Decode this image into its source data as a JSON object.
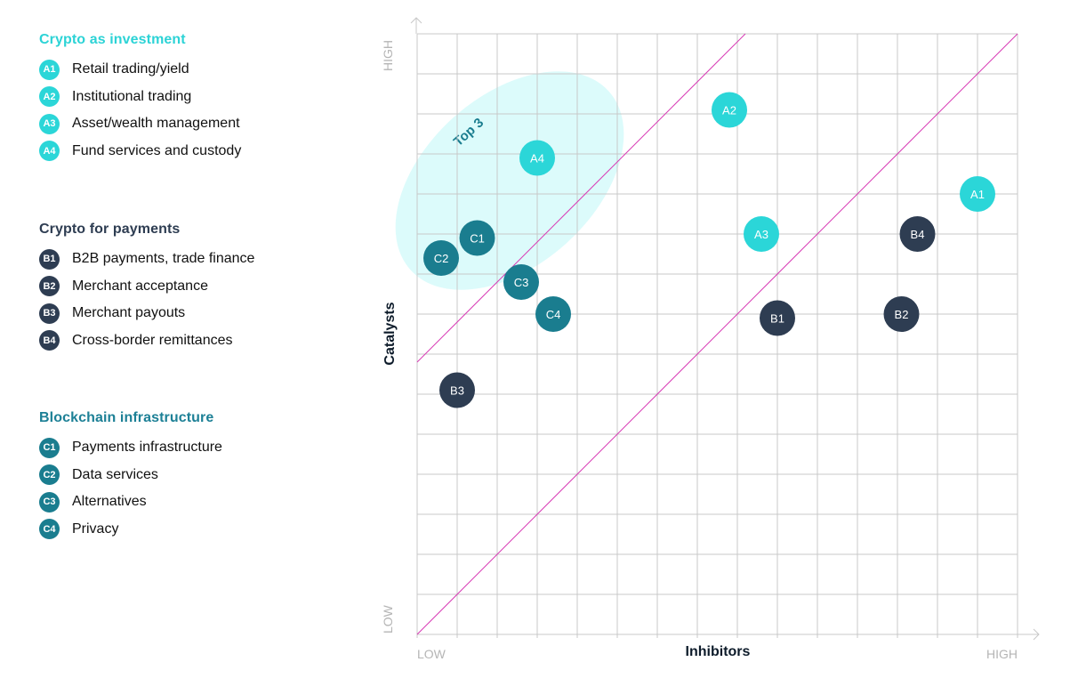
{
  "legend": {
    "groups": [
      {
        "title": "Crypto as investment",
        "color": "#2bd6d8",
        "title_color": "#2cd3d6",
        "items": [
          {
            "code": "A1",
            "label": "Retail trading/yield"
          },
          {
            "code": "A2",
            "label": "Institutional trading"
          },
          {
            "code": "A3",
            "label": "Asset/wealth management"
          },
          {
            "code": "A4",
            "label": "Fund services and custody"
          }
        ]
      },
      {
        "title": "Crypto for payments",
        "color": "#2e3d52",
        "title_color": "#2e3d52",
        "items": [
          {
            "code": "B1",
            "label": "B2B payments, trade finance"
          },
          {
            "code": "B2",
            "label": "Merchant acceptance"
          },
          {
            "code": "B3",
            "label": "Merchant payouts"
          },
          {
            "code": "B4",
            "label": "Cross-border remittances"
          }
        ]
      },
      {
        "title": "Blockchain infrastructure",
        "color": "#1a7d8f",
        "title_color": "#1d8096",
        "items": [
          {
            "code": "C1",
            "label": "Payments infrastructure"
          },
          {
            "code": "C2",
            "label": "Data services"
          },
          {
            "code": "C3",
            "label": "Alternatives"
          },
          {
            "code": "C4",
            "label": "Privacy"
          }
        ]
      }
    ]
  },
  "chart_data": {
    "type": "scatter",
    "xlabel": "Inhibitors",
    "ylabel": "Catalysts",
    "x_low_label": "LOW",
    "x_high_label": "HIGH",
    "y_low_label": "LOW",
    "y_high_label": "HIGH",
    "xlim": [
      0,
      15
    ],
    "ylim": [
      0,
      15
    ],
    "grid": true,
    "points": [
      {
        "label": "A1",
        "group": 0,
        "x": 14.0,
        "y": 11.0
      },
      {
        "label": "A2",
        "group": 0,
        "x": 7.8,
        "y": 13.1
      },
      {
        "label": "A3",
        "group": 0,
        "x": 8.6,
        "y": 10.0
      },
      {
        "label": "A4",
        "group": 0,
        "x": 3.0,
        "y": 11.9
      },
      {
        "label": "B1",
        "group": 1,
        "x": 9.0,
        "y": 7.9
      },
      {
        "label": "B2",
        "group": 1,
        "x": 12.1,
        "y": 8.0
      },
      {
        "label": "B3",
        "group": 1,
        "x": 1.0,
        "y": 6.1
      },
      {
        "label": "B4",
        "group": 1,
        "x": 12.5,
        "y": 10.0
      },
      {
        "label": "C1",
        "group": 2,
        "x": 1.5,
        "y": 9.9
      },
      {
        "label": "C2",
        "group": 2,
        "x": 0.6,
        "y": 9.4
      },
      {
        "label": "C3",
        "group": 2,
        "x": 2.6,
        "y": 8.8
      },
      {
        "label": "C4",
        "group": 2,
        "x": 3.4,
        "y": 8.0
      }
    ],
    "reference_lines": [
      {
        "slope": 1,
        "intercept": 6.8
      },
      {
        "slope": 1,
        "intercept": 0
      }
    ],
    "line_color": "#d83bb5",
    "highlight": {
      "label": "Top 3",
      "fill": "#dcfbfb",
      "label_color": "#1a7d8f"
    }
  }
}
